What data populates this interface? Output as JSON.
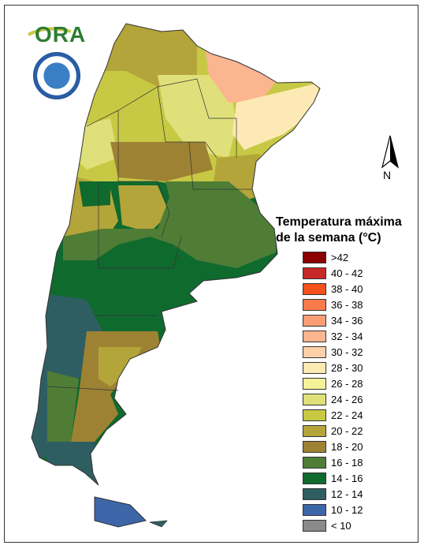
{
  "logo": {
    "text": "ORA",
    "seal_icon": "smn-seal-icon"
  },
  "north_arrow": {
    "label": "N"
  },
  "legend": {
    "title_line1": "Temperatura máxima",
    "title_line2": "de la semana (°C)",
    "items": [
      {
        "label": ">42",
        "color": "#8b0000"
      },
      {
        "label": "40 - 42",
        "color": "#c62828"
      },
      {
        "label": "38 - 40",
        "color": "#f4511e"
      },
      {
        "label": "36 - 38",
        "color": "#f97a4a"
      },
      {
        "label": "34 - 36",
        "color": "#f99e74"
      },
      {
        "label": "32 - 34",
        "color": "#fbb58f"
      },
      {
        "label": "30 - 32",
        "color": "#fdd0a8"
      },
      {
        "label": "28 - 30",
        "color": "#fde9b4"
      },
      {
        "label": "26 - 28",
        "color": "#f6f29a"
      },
      {
        "label": "24 - 26",
        "color": "#dfe07a"
      },
      {
        "label": "22 - 24",
        "color": "#c7c944"
      },
      {
        "label": "20 - 22",
        "color": "#b4a53a"
      },
      {
        "label": "18 - 20",
        "color": "#9e8234"
      },
      {
        "label": "16 - 18",
        "color": "#4f7d36"
      },
      {
        "label": "14 - 16",
        "color": "#0f6a2e"
      },
      {
        "label": "12 - 14",
        "color": "#2e5e62"
      },
      {
        "label": "10 - 12",
        "color": "#3c66a8"
      },
      {
        "label": "< 10",
        "color": "#8a8a8a"
      }
    ]
  }
}
